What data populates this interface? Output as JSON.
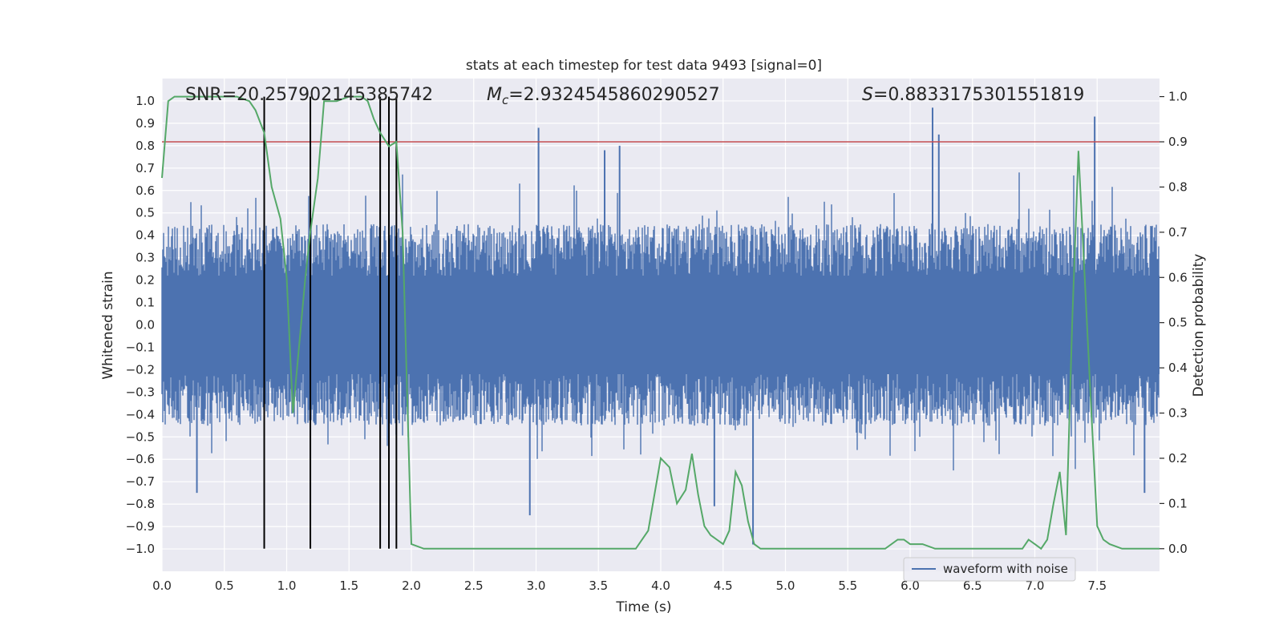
{
  "chart_data": {
    "type": "line",
    "title": "stats at each timestep for test data 9493 [signal=0]",
    "xlabel": "Time (s)",
    "ylabel_left": "Whitened strain",
    "ylabel_right": "Detection probability",
    "xlim": [
      0.0,
      8.0
    ],
    "ylim_left": [
      -1.1,
      1.1
    ],
    "ylim_right": [
      -0.05,
      1.04
    ],
    "x_ticks": [
      "0.0",
      "0.5",
      "1.0",
      "1.5",
      "2.0",
      "2.5",
      "3.0",
      "3.5",
      "4.0",
      "4.5",
      "5.0",
      "5.5",
      "6.0",
      "6.5",
      "7.0",
      "7.5"
    ],
    "y_ticks_left": [
      "1.0",
      "0.9",
      "0.8",
      "0.7",
      "0.6",
      "0.5",
      "0.4",
      "0.3",
      "0.2",
      "0.1",
      "0.0",
      "−0.1",
      "−0.2",
      "−0.3",
      "−0.4",
      "−0.5",
      "−0.6",
      "−0.7",
      "−0.8",
      "−0.9",
      "−1.0"
    ],
    "y_ticks_right": [
      "1.0",
      "0.9",
      "0.8",
      "0.7",
      "0.6",
      "0.5",
      "0.4",
      "0.3",
      "0.2",
      "0.1",
      "0.0"
    ],
    "grid": true,
    "legend": {
      "entries": [
        "waveform with noise"
      ],
      "placement": "lower-right"
    },
    "annotations": {
      "snr": "SNR=20.257902145385742",
      "mc_symbol": "M",
      "mc_sub": "c",
      "mc_value": "=2.9324545860290527",
      "s_symbol": "S",
      "s_value": "=0.8833175301551819"
    },
    "colors": {
      "strain": "#4c72b0",
      "probability": "#55a868",
      "threshold": "#c44e52",
      "markers": "#000000",
      "plot_bg": "#eaeaf2",
      "grid": "#ffffff"
    },
    "threshold_probability": 0.9,
    "detection_markers_x": [
      0.82,
      1.19,
      1.75,
      1.82,
      1.88
    ],
    "strain_envelope": {
      "typical_amplitude": 0.45,
      "peaks": [
        {
          "x": 0.28,
          "y": -0.75
        },
        {
          "x": 2.95,
          "y": -0.85
        },
        {
          "x": 3.02,
          "y": 0.88
        },
        {
          "x": 3.55,
          "y": 0.78
        },
        {
          "x": 3.67,
          "y": 0.8
        },
        {
          "x": 4.43,
          "y": -0.81
        },
        {
          "x": 4.74,
          "y": -0.98
        },
        {
          "x": 6.18,
          "y": 0.97
        },
        {
          "x": 6.23,
          "y": 0.85
        },
        {
          "x": 7.48,
          "y": 0.93
        },
        {
          "x": 7.88,
          "y": -0.75
        }
      ]
    },
    "series": [
      {
        "name": "detection probability",
        "axis": "right",
        "x": [
          0.0,
          0.05,
          0.1,
          0.2,
          0.3,
          0.4,
          0.5,
          0.6,
          0.7,
          0.75,
          0.82,
          0.88,
          0.95,
          1.0,
          1.05,
          1.1,
          1.15,
          1.19,
          1.25,
          1.3,
          1.4,
          1.5,
          1.6,
          1.65,
          1.7,
          1.75,
          1.82,
          1.88,
          1.93,
          2.0,
          2.1,
          2.2,
          2.3,
          2.4,
          2.5,
          2.6,
          2.7,
          2.8,
          2.9,
          3.0,
          3.1,
          3.2,
          3.3,
          3.4,
          3.5,
          3.6,
          3.7,
          3.8,
          3.9,
          4.0,
          4.07,
          4.13,
          4.2,
          4.25,
          4.3,
          4.35,
          4.4,
          4.45,
          4.5,
          4.55,
          4.6,
          4.65,
          4.7,
          4.75,
          4.8,
          4.85,
          4.9,
          5.0,
          5.2,
          5.4,
          5.6,
          5.8,
          5.9,
          5.95,
          6.0,
          6.1,
          6.2,
          6.3,
          6.4,
          6.5,
          6.6,
          6.7,
          6.8,
          6.9,
          6.95,
          7.0,
          7.05,
          7.1,
          7.15,
          7.2,
          7.25,
          7.3,
          7.35,
          7.4,
          7.45,
          7.5,
          7.55,
          7.6,
          7.7,
          7.8,
          7.9,
          8.0
        ],
        "y": [
          0.82,
          0.99,
          1.0,
          1.0,
          1.0,
          1.0,
          1.0,
          1.0,
          0.99,
          0.97,
          0.92,
          0.8,
          0.73,
          0.6,
          0.3,
          0.45,
          0.6,
          0.7,
          0.82,
          0.99,
          0.99,
          1.0,
          1.0,
          0.99,
          0.95,
          0.92,
          0.89,
          0.9,
          0.7,
          0.01,
          0.0,
          0.0,
          0.0,
          0.0,
          0.0,
          0.0,
          0.0,
          0.0,
          0.0,
          0.0,
          0.0,
          0.0,
          0.0,
          0.0,
          0.0,
          0.0,
          0.0,
          0.0,
          0.04,
          0.2,
          0.18,
          0.1,
          0.13,
          0.21,
          0.12,
          0.05,
          0.03,
          0.02,
          0.01,
          0.04,
          0.17,
          0.14,
          0.06,
          0.01,
          0.0,
          0.0,
          0.0,
          0.0,
          0.0,
          0.0,
          0.0,
          0.0,
          0.02,
          0.02,
          0.01,
          0.01,
          0.0,
          0.0,
          0.0,
          0.0,
          0.0,
          0.0,
          0.0,
          0.0,
          0.02,
          0.01,
          0.0,
          0.02,
          0.1,
          0.17,
          0.03,
          0.5,
          0.88,
          0.6,
          0.32,
          0.05,
          0.02,
          0.01,
          0.0,
          0.0,
          0.0,
          0.0
        ]
      }
    ]
  }
}
